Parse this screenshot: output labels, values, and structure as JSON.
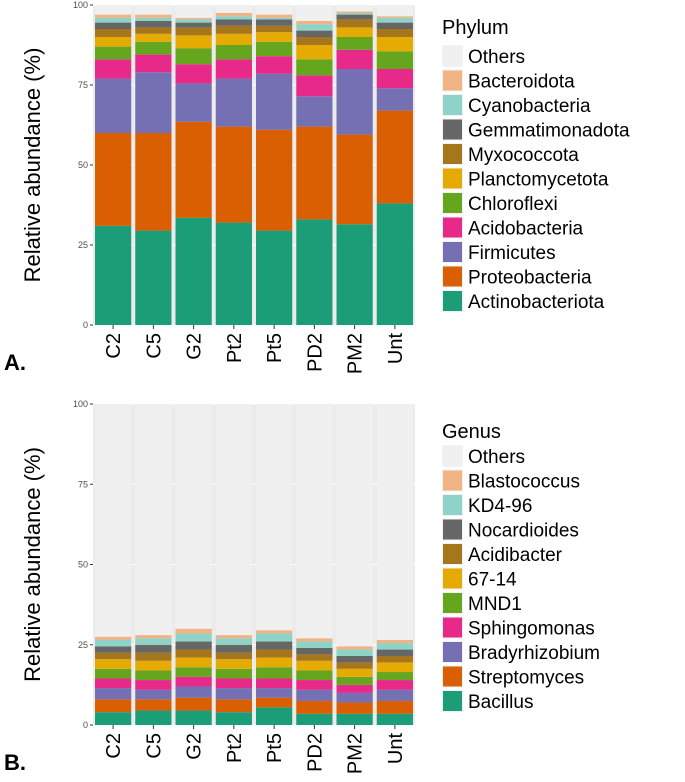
{
  "chart_data": [
    {
      "type": "bar",
      "stacked": true,
      "panel_label": "A.",
      "ylabel": "Relative abundance (%)",
      "ylim": [
        0,
        100
      ],
      "yticks": [
        "0",
        "25",
        "50",
        "75",
        "100"
      ],
      "categories": [
        "C2",
        "C5",
        "G2",
        "Pt2",
        "Pt5",
        "PD2",
        "PM2",
        "Unt"
      ],
      "legend_title": "Phylum",
      "series": [
        {
          "name": "Actinobacteriota",
          "color": "#1b9e77",
          "values": [
            31,
            29.5,
            33.5,
            32,
            29.5,
            33,
            31.5,
            38
          ]
        },
        {
          "name": "Proteobacteria",
          "color": "#d95f02",
          "values": [
            29,
            30.5,
            30,
            30,
            31.5,
            29,
            28,
            29
          ]
        },
        {
          "name": "Firmicutes",
          "color": "#7570b3",
          "values": [
            17,
            19,
            12,
            15,
            17.5,
            9.5,
            20.5,
            7
          ]
        },
        {
          "name": "Acidobacteria",
          "color": "#e7298a",
          "values": [
            6,
            5.5,
            6,
            6,
            5.5,
            6.5,
            6,
            6
          ]
        },
        {
          "name": "Chloroflexi",
          "color": "#66a61e",
          "values": [
            4,
            4,
            5,
            4.5,
            4.5,
            5,
            4,
            5.5
          ]
        },
        {
          "name": "Planctomycetota",
          "color": "#e6ab02",
          "values": [
            3,
            2.5,
            4,
            3.5,
            3,
            4.5,
            3,
            4.5
          ]
        },
        {
          "name": "Myxococcota",
          "color": "#a6761d",
          "values": [
            2.5,
            2,
            2.5,
            2.5,
            2,
            2.5,
            2.5,
            2.5
          ]
        },
        {
          "name": "Gemmatimonadota",
          "color": "#666666",
          "values": [
            2,
            2,
            1.5,
            2,
            2,
            2,
            1.5,
            2
          ]
        },
        {
          "name": "Cyanobacteria",
          "color": "#8dd3c7",
          "values": [
            1.5,
            1,
            1,
            1,
            0.5,
            2,
            0.5,
            1.5
          ]
        },
        {
          "name": "Bacteroidota",
          "color": "#f0b384",
          "values": [
            1,
            1,
            0.5,
            1,
            1,
            1,
            0.5,
            0.5
          ]
        },
        {
          "name": "Others",
          "color": "#f0f0f0",
          "values": [
            3,
            3,
            4,
            2.5,
            3,
            5,
            2,
            3.5
          ]
        }
      ]
    },
    {
      "type": "bar",
      "stacked": true,
      "panel_label": "B.",
      "ylabel": "Relative abundance (%)",
      "ylim": [
        0,
        100
      ],
      "yticks": [
        "0",
        "25",
        "50",
        "75",
        "100"
      ],
      "categories": [
        "C2",
        "C5",
        "G2",
        "Pt2",
        "Pt5",
        "PD2",
        "PM2",
        "Unt"
      ],
      "legend_title": "Genus",
      "series": [
        {
          "name": "Bacillus",
          "color": "#1b9e77",
          "values": [
            4,
            4.5,
            4.5,
            4,
            5.5,
            3.5,
            3.5,
            3.5
          ]
        },
        {
          "name": "Streptomyces",
          "color": "#d95f02",
          "values": [
            4,
            3.5,
            4,
            4,
            3,
            4,
            3.5,
            4
          ]
        },
        {
          "name": "Bradyrhizobium",
          "color": "#7570b3",
          "values": [
            3.5,
            3,
            3.5,
            3.5,
            3,
            3.5,
            3,
            3.5
          ]
        },
        {
          "name": "Sphingomonas",
          "color": "#e7298a",
          "values": [
            3,
            3,
            3,
            3,
            3,
            3,
            2.5,
            3
          ]
        },
        {
          "name": "MND1",
          "color": "#66a61e",
          "values": [
            3,
            3,
            3,
            3,
            3.5,
            3,
            2.5,
            2.5
          ]
        },
        {
          "name": "67-14",
          "color": "#e6ab02",
          "values": [
            3,
            3,
            3,
            3,
            3,
            3,
            2.5,
            3
          ]
        },
        {
          "name": "Acidibacter",
          "color": "#a6761d",
          "values": [
            2,
            2.5,
            2.5,
            2,
            2.5,
            2,
            2,
            2
          ]
        },
        {
          "name": "Nocardioides",
          "color": "#666666",
          "values": [
            2,
            2.5,
            2.5,
            2.5,
            2.5,
            2,
            2,
            2
          ]
        },
        {
          "name": "KD4-96",
          "color": "#8dd3c7",
          "values": [
            2,
            2,
            2.5,
            2,
            2.5,
            2,
            2,
            2
          ]
        },
        {
          "name": "Blastococcus",
          "color": "#f0b384",
          "values": [
            1,
            1,
            1.5,
            1,
            1,
            1,
            1,
            1
          ]
        },
        {
          "name": "Others",
          "color": "#f0f0f0",
          "values": [
            72.5,
            72,
            70,
            72,
            70.5,
            73,
            75.5,
            73.5
          ]
        }
      ]
    }
  ]
}
